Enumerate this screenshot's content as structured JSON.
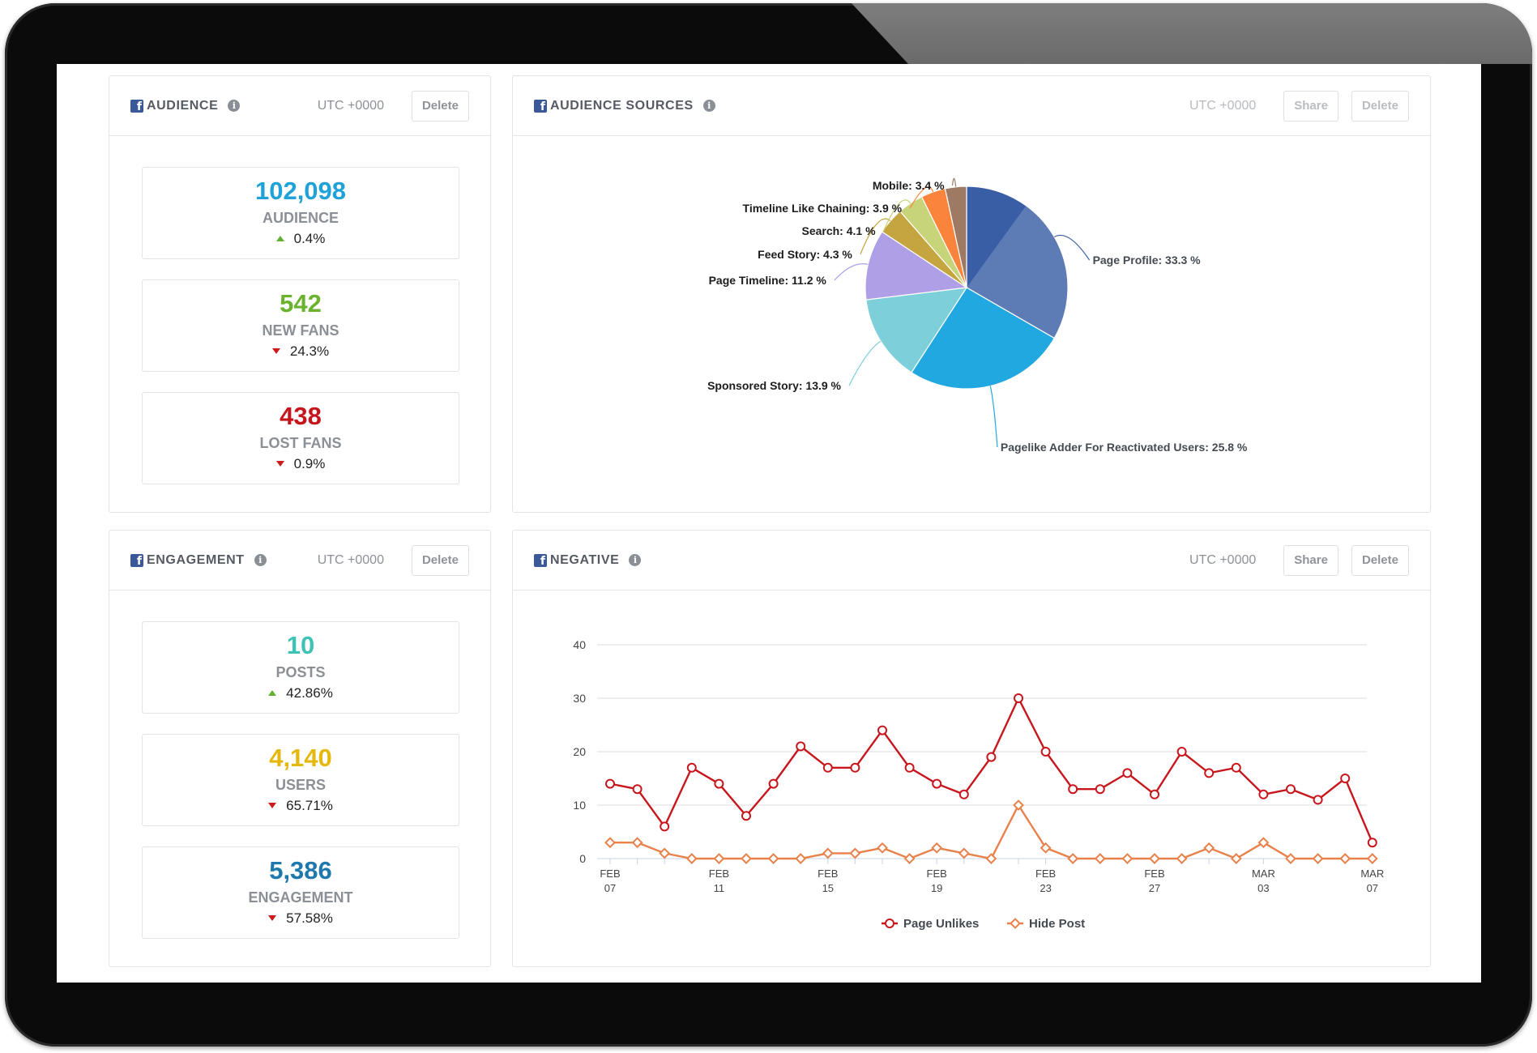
{
  "audience": {
    "title": "AUDIENCE",
    "utc": "UTC +0000",
    "delete_label": "Delete",
    "stats": [
      {
        "value": "102,098",
        "label": "AUDIENCE",
        "change": "0.4%",
        "direction": "up",
        "color": "#1fa2d8"
      },
      {
        "value": "542",
        "label": "NEW FANS",
        "change": "24.3%",
        "direction": "down",
        "color": "#6bb22f"
      },
      {
        "value": "438",
        "label": "LOST FANS",
        "change": "0.9%",
        "direction": "down",
        "color": "#c4161c"
      }
    ]
  },
  "engagement": {
    "title": "ENGAGEMENT",
    "utc": "UTC +0000",
    "delete_label": "Delete",
    "stats": [
      {
        "value": "10",
        "label": "POSTS",
        "change": "42.86%",
        "direction": "up",
        "color": "#3ec2b5"
      },
      {
        "value": "4,140",
        "label": "USERS",
        "change": "65.71%",
        "direction": "down",
        "color": "#e4b80e"
      },
      {
        "value": "5,386",
        "label": "ENGAGEMENT",
        "change": "57.58%",
        "direction": "down",
        "color": "#1f79ad"
      }
    ]
  },
  "audience_sources": {
    "title": "AUDIENCE SOURCES",
    "utc": "UTC +0000",
    "share_label": "Share",
    "delete_label": "Delete"
  },
  "negative": {
    "title": "NEGATIVE",
    "utc": "UTC +0000",
    "share_label": "Share",
    "delete_label": "Delete"
  },
  "chart_data": [
    {
      "type": "pie",
      "slices": [
        {
          "label": "Page Profile",
          "value": 33.3,
          "display": "Page Profile: 33.3 %",
          "color": "#3a5ea5"
        },
        {
          "label": "Pagelike Adder For Reactivated Users",
          "value": 25.8,
          "display": "Pagelike Adder For Reactivated Users: 25.8 %",
          "color": "#22a8e0"
        },
        {
          "label": "Sponsored Story",
          "value": 13.9,
          "display": "Sponsored Story: 13.9 %",
          "color": "#7dcfd9"
        },
        {
          "label": "Page Timeline",
          "value": 11.2,
          "display": "Page Timeline: 11.2 %",
          "color": "#ae9fe6"
        },
        {
          "label": "Feed Story",
          "value": 4.3,
          "display": "Feed Story: 4.3 %",
          "color": "#c4a540"
        },
        {
          "label": "Search",
          "value": 4.1,
          "display": "Search: 4.1 %",
          "color": "#c8d47a"
        },
        {
          "label": "Timeline Like Chaining",
          "value": 3.9,
          "display": "Timeline Like Chaining: 3.9 %",
          "color": "#fb843c"
        },
        {
          "label": "Mobile",
          "value": 3.4,
          "display": "Mobile: 3.4 %",
          "color": "#9e7a65"
        }
      ]
    },
    {
      "type": "line",
      "x_tick_labels": [
        [
          "FEB",
          "07"
        ],
        [
          "FEB",
          "11"
        ],
        [
          "FEB",
          "15"
        ],
        [
          "FEB",
          "19"
        ],
        [
          "FEB",
          "23"
        ],
        [
          "FEB",
          "27"
        ],
        [
          "MAR",
          "03"
        ],
        [
          "MAR",
          "07"
        ]
      ],
      "yticks": [
        0,
        10,
        20,
        30,
        40
      ],
      "ylim": [
        0,
        40
      ],
      "series": [
        {
          "name": "Page Unlikes",
          "color": "#c8161d",
          "marker": "circle",
          "values": [
            14,
            13,
            6,
            17,
            14,
            8,
            14,
            21,
            17,
            17,
            24,
            17,
            14,
            12,
            19,
            30,
            20,
            13,
            13,
            16,
            12,
            20,
            16,
            17,
            12,
            13,
            11,
            15,
            3
          ]
        },
        {
          "name": "Hide Post",
          "color": "#e8814a",
          "marker": "diamond",
          "values": [
            3,
            3,
            1,
            0,
            0,
            0,
            0,
            0,
            1,
            1,
            2,
            0,
            2,
            1,
            0,
            10,
            2,
            0,
            0,
            0,
            0,
            0,
            2,
            0,
            3,
            0,
            0,
            0,
            0
          ]
        }
      ]
    }
  ]
}
